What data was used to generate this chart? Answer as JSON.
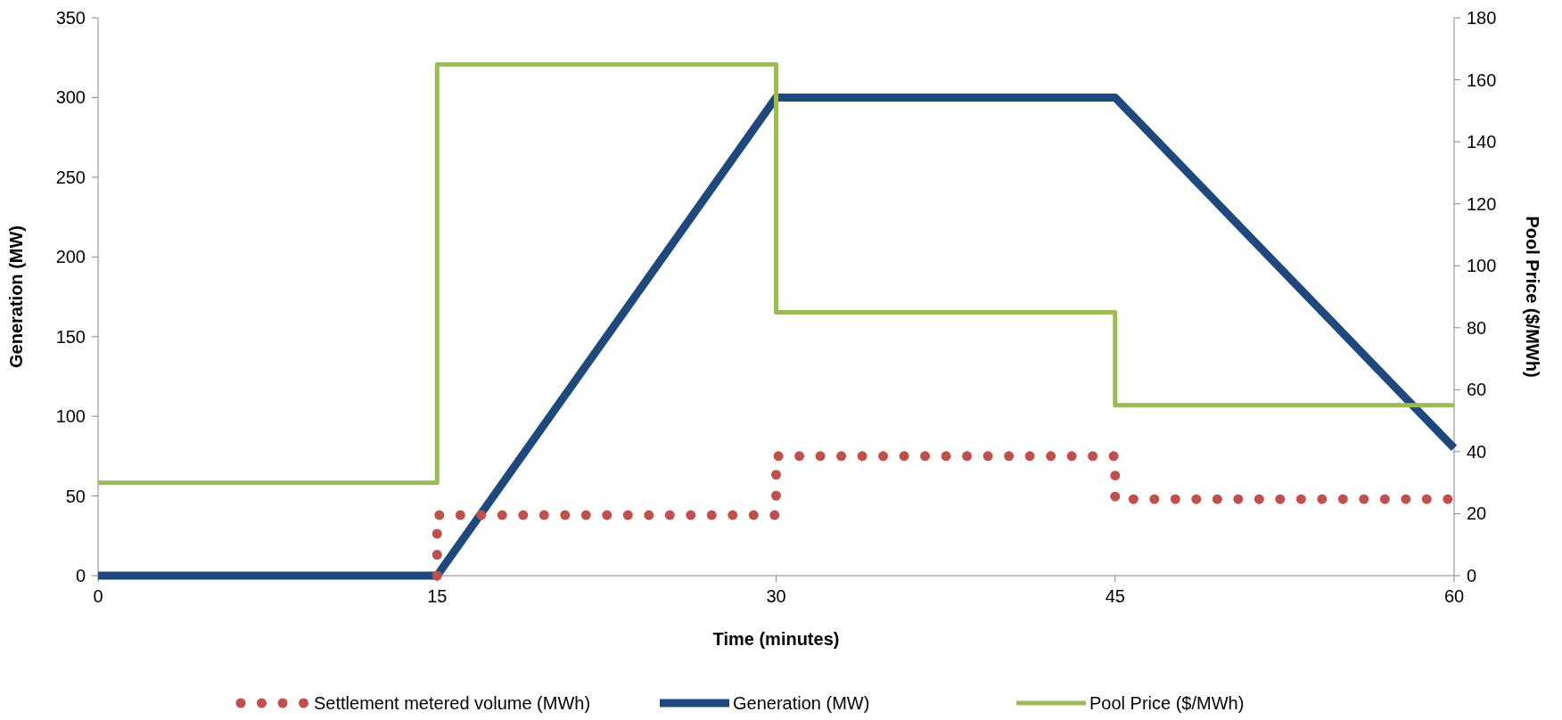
{
  "chart_data": {
    "type": "line",
    "xlabel": "Time (minutes)",
    "ylabel": "Generation (MW)",
    "y2label": "Pool Price ($/MWh)",
    "xlim": [
      0,
      60
    ],
    "xticks": [
      0,
      15,
      30,
      45,
      60
    ],
    "ylim": [
      0,
      350
    ],
    "yticks": [
      0,
      50,
      100,
      150,
      200,
      250,
      300,
      350
    ],
    "y2lim": [
      0,
      180
    ],
    "y2ticks": [
      0,
      20,
      40,
      60,
      80,
      100,
      120,
      140,
      160,
      180
    ],
    "grid": false,
    "legend": "bottom",
    "marker": "none",
    "series": [
      {
        "name": "Settlement metered volume (MWh)",
        "type": "step",
        "color": "#c0504d",
        "line_style": "dotted",
        "x": [
          15,
          15,
          30,
          45,
          60
        ],
        "values": [
          0,
          38,
          75,
          48,
          48
        ]
      },
      {
        "name": "Generation (MW)",
        "color": "#1f497d",
        "line_style": "solid",
        "x": [
          0,
          15,
          30,
          45,
          60
        ],
        "values": [
          0,
          0,
          300,
          300,
          80
        ]
      },
      {
        "name": "Pool Price ($/MWh)",
        "type": "step",
        "axis": "y2",
        "color": "#9bbb59",
        "line_style": "solid",
        "x": [
          0,
          15,
          30,
          45,
          60
        ],
        "values": [
          30,
          165,
          85,
          55,
          55
        ]
      }
    ]
  }
}
